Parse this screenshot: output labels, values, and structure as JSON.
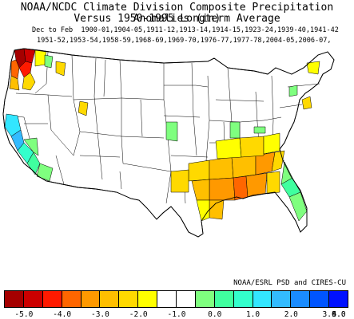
{
  "title_line1": "NOAA/NCDC Climate Division Composite Precipitation Anomalies (in)",
  "title_line2": "Versus 1950-1995 Longterm Average",
  "subtitle_line1": "Dec to Feb  1900-01,1904-05,1911-12,1913-14,1914-15,1923-24,1939-40,1941-42",
  "subtitle_line2": "1951-52,1953-54,1958-59,1968-69,1969-70,1976-77,1977-78,2004-05,2006-07,",
  "credit": "NOAA/ESRL PSD and CIRES-CU",
  "legend": {
    "colors": [
      "#a50000",
      "#cc0000",
      "#ff1a00",
      "#ff6600",
      "#ff9900",
      "#ffbf00",
      "#ffd900",
      "#ffff00",
      "#ffffff",
      "#ffffff",
      "#7fff7f",
      "#40ff9f",
      "#33ffcc",
      "#33e6ff",
      "#33bbff",
      "#1a8cff",
      "#0055ff",
      "#0011ff"
    ],
    "tick_labels": [
      "-5.0",
      "-4.0",
      "-3.0",
      "-2.0",
      "-1.0",
      "0.0",
      "1.0",
      "2.0",
      "3.0",
      "4.0",
      "5.0"
    ]
  }
}
